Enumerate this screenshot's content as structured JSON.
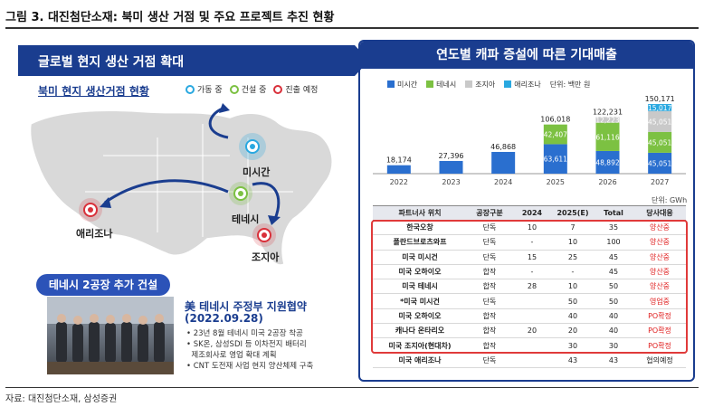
{
  "figure": {
    "title": "그림 3. 대진첨단소재: 북미 생산 거점 및 주요 프로젝트 추진 현황",
    "source": "자료: 대진첨단소재, 삼성증권"
  },
  "left": {
    "banner": "글로벌 현지 생산 거점 확대",
    "map_subtitle": "북미 현지 생산거점 현황",
    "legend": [
      {
        "label": "가동 중",
        "color": "#29a8e0"
      },
      {
        "label": "건설 중",
        "color": "#7cc142"
      },
      {
        "label": "진출 예정",
        "color": "#d9303a"
      }
    ],
    "sites": {
      "michigan": "미시간",
      "tennessee": "테네시",
      "arizona": "애리조나",
      "georgia": "조지아"
    },
    "tn_banner": "테네시 2공장 추가 건설",
    "tn_headline": "美 테네시 주정부 지원협약",
    "tn_date": "(2022.09.28)",
    "tn_bullets": [
      "• 23년 8월 테네시 미국 2공장 착공",
      "• SK온, 삼성SDI 등 이차전지 배터리",
      "  제조회사로 영업 확대 계획",
      "• CNT 도전재 사업 현지 양산체제 구축"
    ]
  },
  "right": {
    "title": "연도별 캐파 증설에 따른 기대매출",
    "unit_top": "단위: 백만 원",
    "unit_table": "단위: GWh"
  },
  "colors": {
    "michigan": "#2a6fcf",
    "tennessee": "#7cc142",
    "georgia": "#c9c9c9",
    "arizona": "#29a8e0",
    "navy": "#1a3d8f"
  },
  "chart_data": {
    "type": "bar",
    "stacked": true,
    "categories": [
      "2022",
      "2023",
      "2024",
      "2025",
      "2026",
      "2027"
    ],
    "series": [
      {
        "name": "미시간",
        "values": [
          18174,
          27396,
          46868,
          63611,
          48892,
          45051
        ]
      },
      {
        "name": "테네시",
        "values": [
          0,
          0,
          0,
          42407,
          61116,
          45051
        ]
      },
      {
        "name": "조지아",
        "values": [
          0,
          0,
          0,
          0,
          12223,
          45051
        ]
      },
      {
        "name": "애리조나",
        "values": [
          0,
          0,
          0,
          0,
          0,
          15017
        ]
      }
    ],
    "totals": [
      18174,
      27396,
      46868,
      106018,
      122231,
      150171
    ],
    "segment_labels": {
      "2025": [
        "63,611",
        "42,407",
        "",
        ""
      ],
      "2026": [
        "48,892",
        "61,116",
        "12,223",
        ""
      ],
      "2027": [
        "45,051",
        "45,051",
        "45,051",
        "15,017"
      ]
    },
    "total_labels": [
      "18,174",
      "27,396",
      "46,868",
      "106,018",
      "122,231",
      "150,171"
    ],
    "ylim": [
      0,
      160000
    ],
    "legend_position": "top-left"
  },
  "table": {
    "headers": [
      "파트너사 위치",
      "공장구분",
      "2024",
      "2025(E)",
      "Total",
      "당사대응"
    ],
    "rows": [
      [
        "한국오창",
        "단독",
        "10",
        "7",
        "35",
        "양산중"
      ],
      [
        "폴란드브로츠와프",
        "단독",
        "-",
        "10",
        "100",
        "양산중"
      ],
      [
        "미국 미시건",
        "단독",
        "15",
        "25",
        "45",
        "양산중"
      ],
      [
        "미국 오하이오",
        "합작",
        "-",
        "-",
        "45",
        "양산중"
      ],
      [
        "미국 테네시",
        "합작",
        "28",
        "10",
        "50",
        "양산중"
      ],
      [
        "*미국 미시건",
        "단독",
        "",
        "50",
        "50",
        "영업중"
      ],
      [
        "미국 오하이오",
        "합작",
        "",
        "40",
        "40",
        "PO확정"
      ],
      [
        "캐나다 온타리오",
        "합작",
        "20",
        "20",
        "40",
        "PO확정"
      ],
      [
        "미국 조지아(현대차)",
        "합작",
        "",
        "30",
        "30",
        "PO확정"
      ],
      [
        "미국 애리조나",
        "단독",
        "",
        "43",
        "43",
        "협의예정"
      ]
    ]
  }
}
